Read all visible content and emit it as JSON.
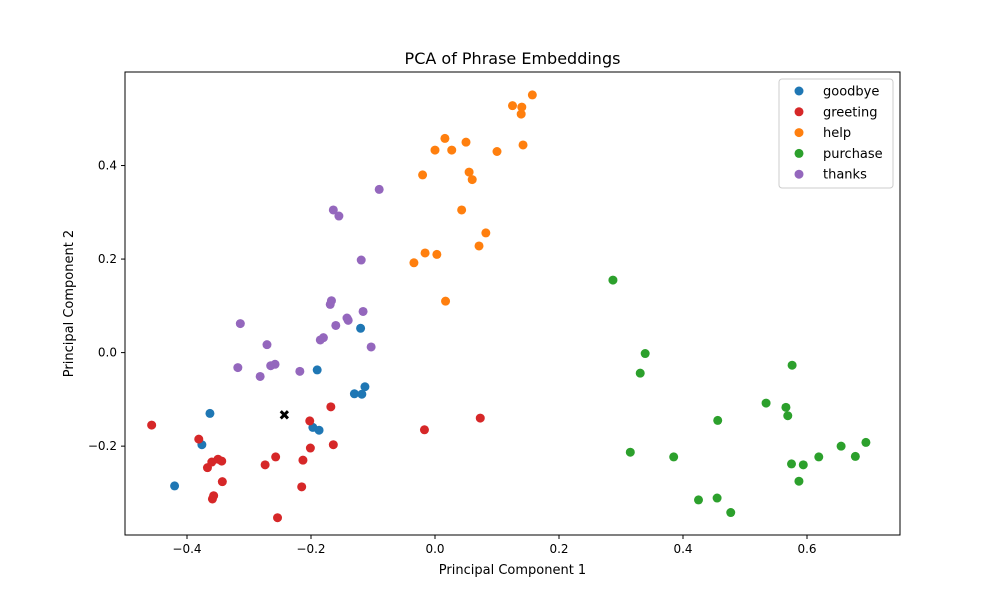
{
  "chart_data": {
    "type": "scatter",
    "title": "PCA of Phrase Embeddings",
    "xlabel": "Principal Component 1",
    "ylabel": "Principal Component 2",
    "xlim": [
      -0.5,
      0.75
    ],
    "ylim": [
      -0.39,
      0.6
    ],
    "xticks": [
      {
        "value": -0.4,
        "label": "−0.4"
      },
      {
        "value": -0.2,
        "label": "−0.2"
      },
      {
        "value": 0.0,
        "label": "0.0"
      },
      {
        "value": 0.2,
        "label": "0.2"
      },
      {
        "value": 0.4,
        "label": "0.4"
      },
      {
        "value": 0.6,
        "label": "0.6"
      }
    ],
    "yticks": [
      {
        "value": -0.2,
        "label": "−0.2"
      },
      {
        "value": 0.0,
        "label": "0.0"
      },
      {
        "value": 0.2,
        "label": "0.2"
      },
      {
        "value": 0.4,
        "label": "0.4"
      }
    ],
    "grid": false,
    "legend_position": "top-right",
    "series": [
      {
        "name": "goodbye",
        "color": "#1f77b4",
        "points": [
          [
            -0.42,
            -0.285
          ],
          [
            -0.376,
            -0.197
          ],
          [
            -0.363,
            -0.13
          ],
          [
            -0.197,
            -0.16
          ],
          [
            -0.19,
            -0.037
          ],
          [
            -0.187,
            -0.166
          ],
          [
            -0.13,
            -0.088
          ],
          [
            -0.12,
            0.052
          ],
          [
            -0.118,
            -0.089
          ],
          [
            -0.113,
            -0.073
          ]
        ]
      },
      {
        "name": "greeting",
        "color": "#d62728",
        "points": [
          [
            -0.457,
            -0.155
          ],
          [
            -0.381,
            -0.185
          ],
          [
            -0.367,
            -0.246
          ],
          [
            -0.36,
            -0.234
          ],
          [
            -0.359,
            -0.313
          ],
          [
            -0.357,
            -0.306
          ],
          [
            -0.35,
            -0.228
          ],
          [
            -0.344,
            -0.232
          ],
          [
            -0.343,
            -0.276
          ],
          [
            -0.274,
            -0.24
          ],
          [
            -0.257,
            -0.223
          ],
          [
            -0.254,
            -0.353
          ],
          [
            -0.215,
            -0.287
          ],
          [
            -0.213,
            -0.23
          ],
          [
            -0.202,
            -0.146
          ],
          [
            -0.201,
            -0.204
          ],
          [
            -0.168,
            -0.116
          ],
          [
            -0.164,
            -0.197
          ],
          [
            -0.017,
            -0.165
          ],
          [
            0.073,
            -0.14
          ]
        ]
      },
      {
        "name": "help",
        "color": "#ff7f0e",
        "points": [
          [
            -0.034,
            0.192
          ],
          [
            -0.02,
            0.38
          ],
          [
            -0.016,
            0.213
          ],
          [
            0.0,
            0.433
          ],
          [
            0.003,
            0.21
          ],
          [
            0.016,
            0.458
          ],
          [
            0.017,
            0.11
          ],
          [
            0.027,
            0.433
          ],
          [
            0.043,
            0.305
          ],
          [
            0.05,
            0.45
          ],
          [
            0.055,
            0.386
          ],
          [
            0.06,
            0.37
          ],
          [
            0.071,
            0.228
          ],
          [
            0.082,
            0.256
          ],
          [
            0.1,
            0.43
          ],
          [
            0.125,
            0.528
          ],
          [
            0.139,
            0.51
          ],
          [
            0.14,
            0.525
          ],
          [
            0.142,
            0.444
          ],
          [
            0.157,
            0.551
          ]
        ]
      },
      {
        "name": "purchase",
        "color": "#2ca02c",
        "points": [
          [
            0.287,
            0.155
          ],
          [
            0.315,
            -0.213
          ],
          [
            0.331,
            -0.044
          ],
          [
            0.339,
            -0.002
          ],
          [
            0.385,
            -0.223
          ],
          [
            0.425,
            -0.315
          ],
          [
            0.455,
            -0.311
          ],
          [
            0.456,
            -0.145
          ],
          [
            0.477,
            -0.342
          ],
          [
            0.534,
            -0.108
          ],
          [
            0.566,
            -0.117
          ],
          [
            0.569,
            -0.135
          ],
          [
            0.575,
            -0.238
          ],
          [
            0.576,
            -0.027
          ],
          [
            0.587,
            -0.275
          ],
          [
            0.594,
            -0.24
          ],
          [
            0.619,
            -0.223
          ],
          [
            0.655,
            -0.2
          ],
          [
            0.678,
            -0.222
          ],
          [
            0.695,
            -0.192
          ]
        ]
      },
      {
        "name": "thanks",
        "color": "#9467bd",
        "points": [
          [
            -0.318,
            -0.032
          ],
          [
            -0.314,
            0.062
          ],
          [
            -0.282,
            -0.051
          ],
          [
            -0.271,
            0.017
          ],
          [
            -0.265,
            -0.028
          ],
          [
            -0.258,
            -0.025
          ],
          [
            -0.218,
            -0.04
          ],
          [
            -0.185,
            0.027
          ],
          [
            -0.18,
            0.032
          ],
          [
            -0.169,
            0.103
          ],
          [
            -0.167,
            0.111
          ],
          [
            -0.164,
            0.305
          ],
          [
            -0.16,
            0.058
          ],
          [
            -0.155,
            0.292
          ],
          [
            -0.142,
            0.074
          ],
          [
            -0.14,
            0.069
          ],
          [
            -0.119,
            0.198
          ],
          [
            -0.116,
            0.088
          ],
          [
            -0.103,
            0.012
          ],
          [
            -0.09,
            0.349
          ]
        ]
      }
    ],
    "marker": {
      "x": -0.243,
      "y": -0.133,
      "shape": "x",
      "color": "#000000"
    }
  }
}
